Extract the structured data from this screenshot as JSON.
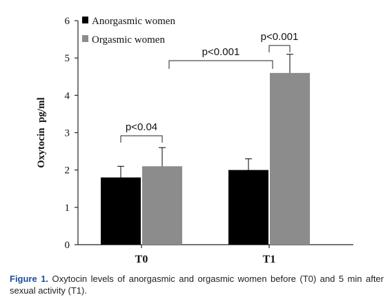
{
  "chart_data": {
    "type": "bar",
    "categories": [
      "T0",
      "T1"
    ],
    "series": [
      {
        "name": "Anorgasmic women",
        "values": [
          1.8,
          2.0
        ],
        "errors": [
          0.3,
          0.3
        ],
        "color": "#000000"
      },
      {
        "name": "Orgasmic women",
        "values": [
          2.1,
          4.6
        ],
        "errors": [
          0.5,
          0.5
        ],
        "color": "#8c8c8c"
      }
    ],
    "ylabel": "Oxytocin  pg/ml",
    "ylim": [
      0,
      6
    ],
    "yticks": [
      "0",
      "1",
      "2",
      "3",
      "4",
      "5",
      "6"
    ],
    "legend_position": "top-left",
    "grid": false,
    "annotations": [
      {
        "text": "p<0.04"
      },
      {
        "text": "p<0.001"
      },
      {
        "text": "p<0.001"
      }
    ]
  },
  "caption": {
    "label": "Figure 1.",
    "text": " Oxytocin levels of anorgasmic and orgasmic women before (T0) and 5 min after sexual activity (T1)."
  }
}
